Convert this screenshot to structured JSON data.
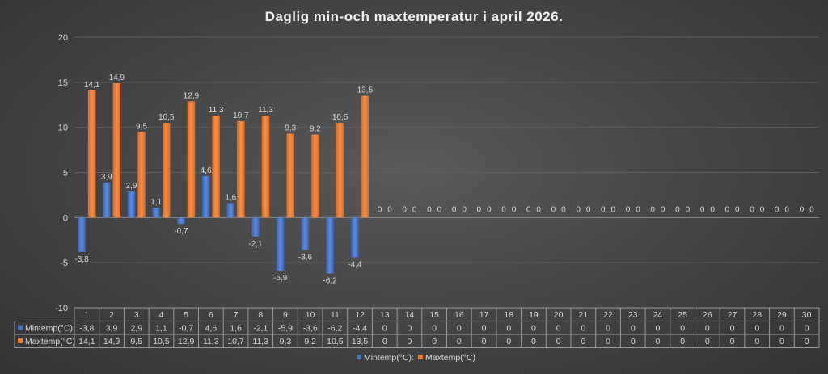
{
  "chart_data": {
    "type": "bar",
    "title": "Daglig min-och maxtemperatur i april 2026.",
    "categories": [
      "1",
      "2",
      "3",
      "4",
      "5",
      "6",
      "7",
      "8",
      "9",
      "10",
      "11",
      "12",
      "13",
      "14",
      "15",
      "16",
      "17",
      "18",
      "19",
      "20",
      "21",
      "22",
      "23",
      "24",
      "25",
      "26",
      "27",
      "28",
      "29",
      "30"
    ],
    "series": [
      {
        "name": "Mintemp(°C):",
        "color": "#4472c4",
        "values": [
          -3.8,
          3.9,
          2.9,
          1.1,
          -0.7,
          4.6,
          1.6,
          -2.1,
          -5.9,
          -3.6,
          -6.2,
          -4.4,
          0,
          0,
          0,
          0,
          0,
          0,
          0,
          0,
          0,
          0,
          0,
          0,
          0,
          0,
          0,
          0,
          0,
          0
        ],
        "labels": [
          "-3,8",
          "3,9",
          "2,9",
          "1,1",
          "-0,7",
          "4,6",
          "1,6",
          "-2,1",
          "-5,9",
          "-3,6",
          "-6,2",
          "-4,4",
          "0",
          "0",
          "0",
          "0",
          "0",
          "0",
          "0",
          "0",
          "0",
          "0",
          "0",
          "0",
          "0",
          "0",
          "0",
          "0",
          "0",
          "0"
        ]
      },
      {
        "name": "Maxtemp(°C)",
        "color": "#ed7d31",
        "values": [
          14.1,
          14.9,
          9.5,
          10.5,
          12.9,
          11.3,
          10.7,
          11.3,
          9.3,
          9.2,
          10.5,
          13.5,
          0,
          0,
          0,
          0,
          0,
          0,
          0,
          0,
          0,
          0,
          0,
          0,
          0,
          0,
          0,
          0,
          0,
          0
        ],
        "labels": [
          "14,1",
          "14,9",
          "9,5",
          "10,5",
          "12,9",
          "11,3",
          "10,7",
          "11,3",
          "9,3",
          "9,2",
          "10,5",
          "13,5",
          "0",
          "0",
          "0",
          "0",
          "0",
          "0",
          "0",
          "0",
          "0",
          "0",
          "0",
          "0",
          "0",
          "0",
          "0",
          "0",
          "0",
          "0"
        ]
      }
    ],
    "ylim": [
      -10,
      20
    ],
    "yticks": [
      -10,
      -5,
      0,
      5,
      10,
      15,
      20
    ],
    "ytick_labels": [
      "-10",
      "-5",
      "0",
      "5",
      "10",
      "15",
      "20"
    ],
    "grid": true,
    "legend_position": "bottom",
    "data_table": true
  }
}
